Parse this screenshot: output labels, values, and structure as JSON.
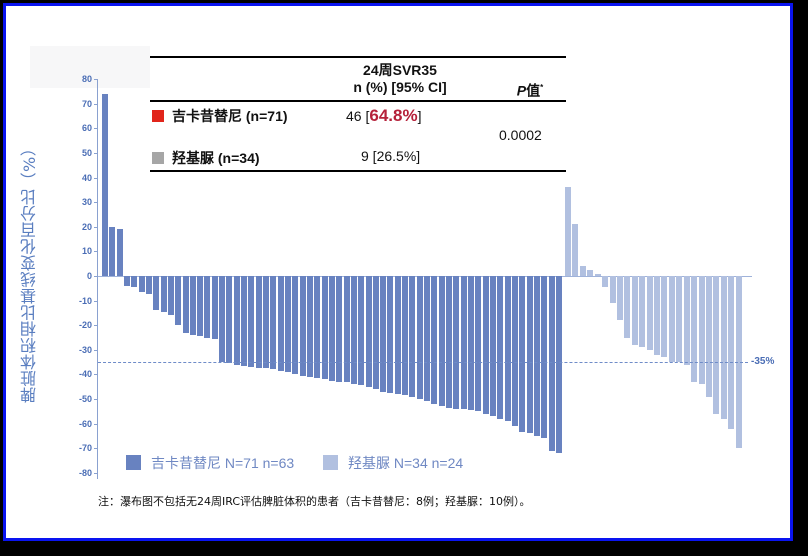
{
  "chart_data": {
    "type": "bar",
    "subtype": "waterfall",
    "title": "",
    "ylabel": "脾脏体积相比基线变化百分比（%）",
    "xlabel": "",
    "ylim": [
      -80,
      80
    ],
    "yticks": [
      80,
      70,
      60,
      50,
      40,
      30,
      20,
      10,
      0,
      -10,
      -20,
      -30,
      -40,
      -50,
      -60,
      -70,
      -80
    ],
    "reference_line": {
      "value": -35,
      "label": "-35%",
      "style": "dashed"
    },
    "grid": false,
    "legend_position": "bottom-left",
    "series": [
      {
        "name": "吉卡昔替尼 N=71 n=63",
        "color": "#6882c0",
        "values": [
          74,
          20,
          19,
          -4,
          -4.5,
          -6.5,
          -7.5,
          -14,
          -14.5,
          -16,
          -20,
          -23,
          -24,
          -24.5,
          -25,
          -25.5,
          -35,
          -35.5,
          -36,
          -36.5,
          -37,
          -37.5,
          -37.5,
          -38,
          -38.5,
          -39,
          -40,
          -40.5,
          -41,
          -41.5,
          -42,
          -42.5,
          -43,
          -43,
          -44,
          -44.5,
          -45,
          -46,
          -47,
          -47.5,
          -48,
          -48.5,
          -49,
          -50,
          -51,
          -52,
          -53,
          -53.5,
          -54,
          -54,
          -54.5,
          -55,
          -56,
          -57,
          -58,
          -59,
          -61,
          -63.5,
          -64,
          -65,
          -66,
          -71,
          -72
        ]
      },
      {
        "name": "羟基脲 N=34 n=24",
        "color": "#b1c0e0",
        "values": [
          36,
          21,
          4,
          2.5,
          1,
          -4.5,
          -11,
          -18,
          -25,
          -28,
          -29,
          -30,
          -32,
          -33,
          -35,
          -35,
          -36,
          -43,
          -44,
          -49,
          -56,
          -58,
          -62,
          -70
        ]
      }
    ]
  },
  "table": {
    "header_col2_line1": "24周SVR35",
    "header_col2_line2": "n (%) [95% CI]",
    "header_col3_p": "P",
    "header_col3_rest": "值",
    "header_col3_sup": "*",
    "rows": [
      {
        "label": "吉卡昔替尼 (n=71)",
        "swatch": "#e1251b",
        "n": "46 [",
        "pct": "64.8%",
        "close": "]",
        "pct_color": "#b5213a"
      },
      {
        "label": "羟基脲 (n=34)",
        "swatch": "#a6a6a6",
        "value": "9 [26.5%]"
      }
    ],
    "p_value": "0.0002"
  },
  "legend": {
    "items": [
      {
        "label": "吉卡昔替尼 N=71 n=63",
        "color": "#6882c0"
      },
      {
        "label": "羟基脲 N=34 n=24",
        "color": "#b1c0e0"
      }
    ]
  },
  "footnote": "注：瀑布图不包括无24周IRC评估脾脏体积的患者（吉卡昔替尼：8例；羟基脲：10例）。",
  "colors": {
    "frame": "#0a14f0",
    "axis_text": "#4a6db5"
  }
}
